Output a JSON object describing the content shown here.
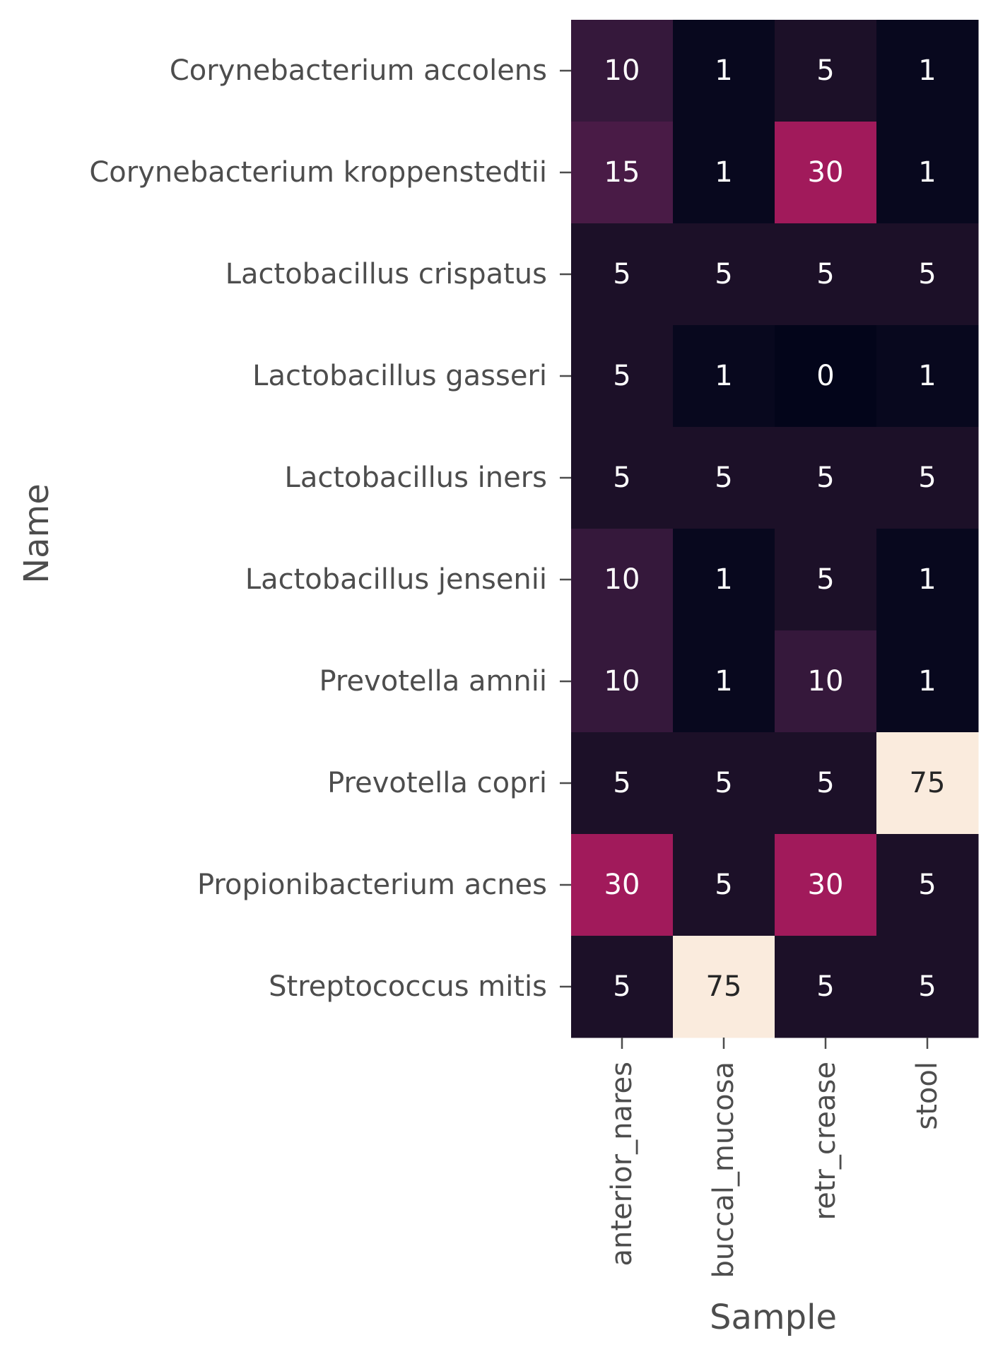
{
  "chart_data": {
    "type": "heatmap",
    "title": "",
    "xlabel": "Sample",
    "ylabel": "Name",
    "x_categories": [
      "anterior_nares",
      "buccal_mucosa",
      "retr_crease",
      "stool"
    ],
    "y_categories": [
      "Corynebacterium accolens",
      "Corynebacterium kroppenstedtii",
      "Lactobacillus crispatus",
      "Lactobacillus gasseri",
      "Lactobacillus iners",
      "Lactobacillus jensenii",
      "Prevotella amnii",
      "Prevotella copri",
      "Propionibacterium acnes",
      "Streptococcus mitis"
    ],
    "values": [
      [
        10,
        1,
        5,
        1
      ],
      [
        15,
        1,
        30,
        1
      ],
      [
        5,
        5,
        5,
        5
      ],
      [
        5,
        1,
        0,
        1
      ],
      [
        5,
        5,
        5,
        5
      ],
      [
        10,
        1,
        5,
        1
      ],
      [
        10,
        1,
        10,
        1
      ],
      [
        5,
        5,
        5,
        75
      ],
      [
        30,
        5,
        30,
        5
      ],
      [
        5,
        75,
        5,
        5
      ]
    ],
    "value_range": [
      0,
      75
    ],
    "annotated": true,
    "colorbar": false,
    "colormap": "rocket",
    "color_stops": {
      "0": "#03051a",
      "1": "#08081e",
      "5": "#1c1028",
      "10": "#35183b",
      "15": "#491b46",
      "30": "#a11a5b",
      "75": "#faebdd"
    }
  }
}
